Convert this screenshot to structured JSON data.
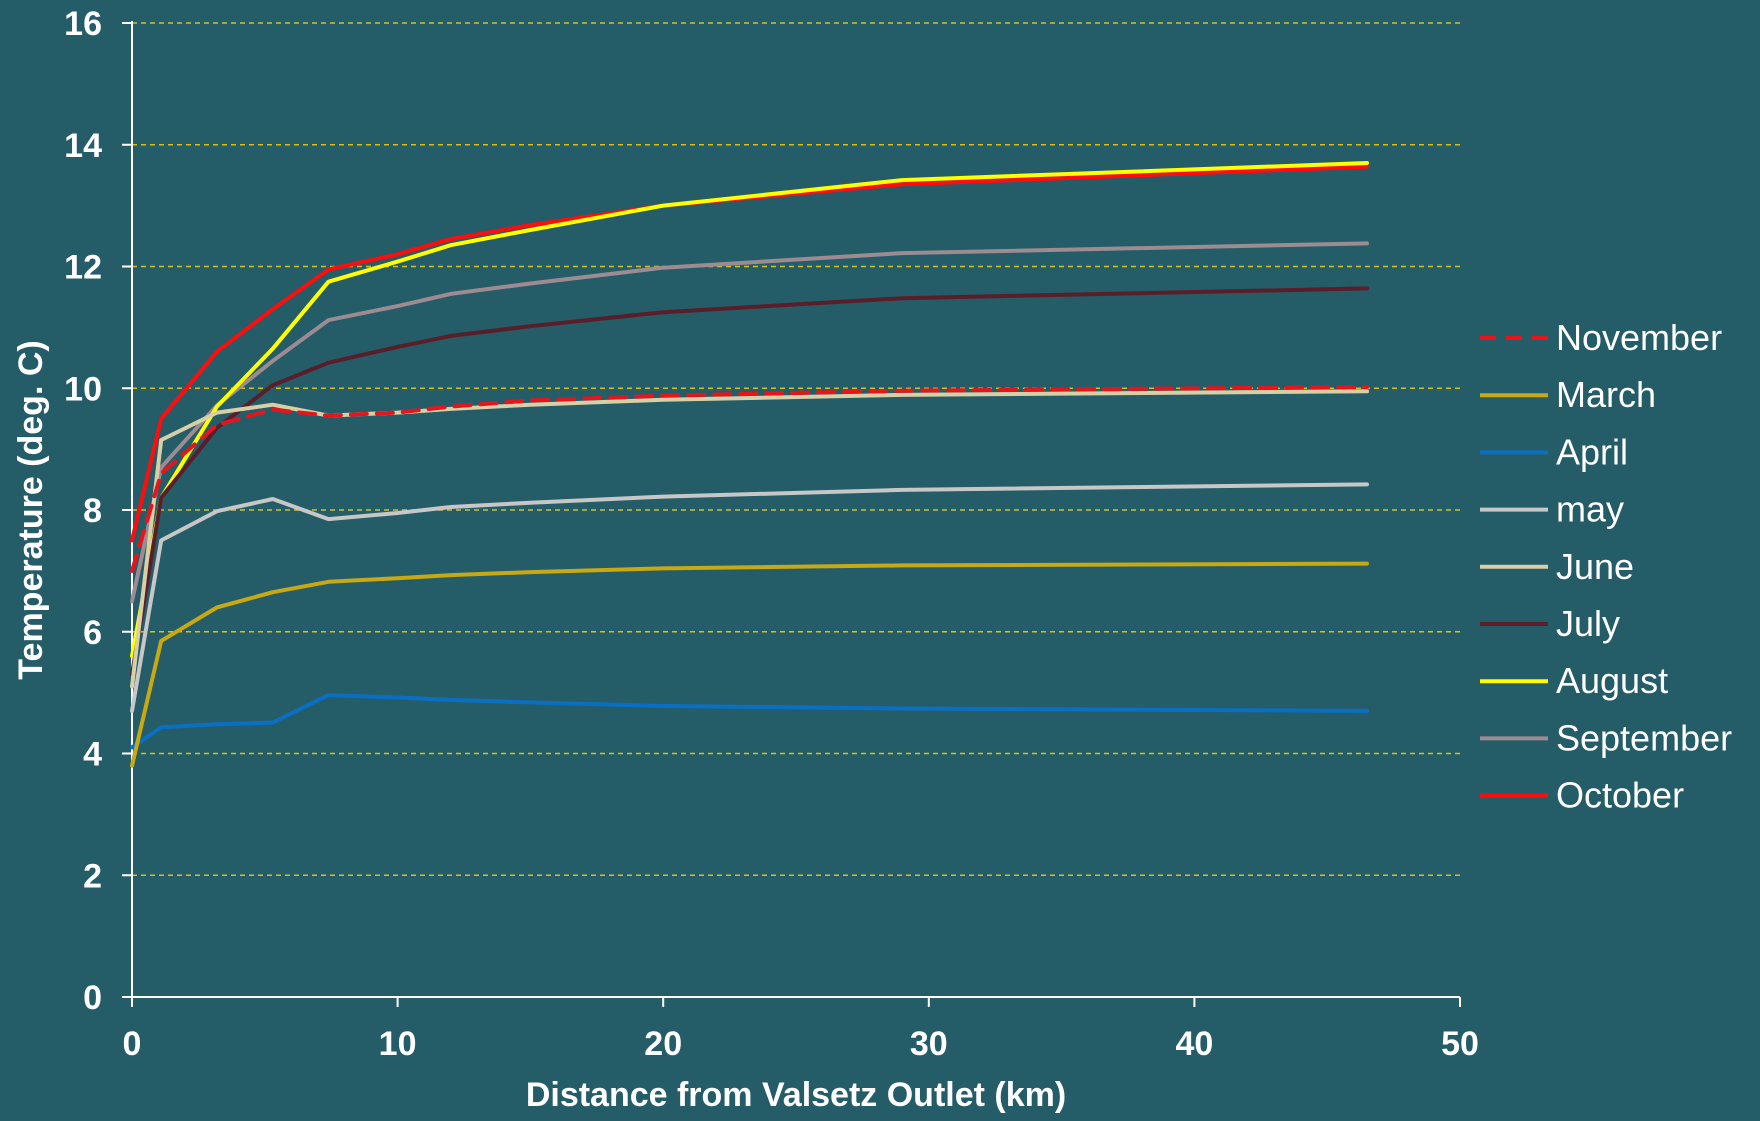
{
  "chart_data": {
    "type": "line",
    "xlabel": "Distance from Valsetz Outlet (km)",
    "ylabel": "Temperature (deg. C)",
    "xlim": [
      0,
      50
    ],
    "ylim": [
      0,
      16
    ],
    "xticks": [
      0,
      10,
      20,
      30,
      40,
      50
    ],
    "yticks": [
      0,
      2,
      4,
      6,
      8,
      10,
      12,
      14,
      16
    ],
    "grid": "horizontal dashed",
    "legend_position": "right",
    "colors": {
      "background": "#245c68",
      "axis": "#ffffff",
      "grid": "#d4c21a",
      "text": "#ffffff"
    },
    "x": [
      0,
      1.1,
      3.2,
      5.3,
      7.4,
      10,
      12,
      15,
      20,
      29,
      46.5
    ],
    "series": [
      {
        "name": "November",
        "color": "#e8141c",
        "style": "dashed",
        "values": [
          7.0,
          8.6,
          9.4,
          9.65,
          9.55,
          9.6,
          9.7,
          9.8,
          9.88,
          9.96,
          10.02
        ]
      },
      {
        "name": "March",
        "color": "#c8a813",
        "style": "solid",
        "values": [
          3.8,
          5.85,
          6.4,
          6.65,
          6.82,
          6.88,
          6.93,
          6.98,
          7.04,
          7.09,
          7.12
        ]
      },
      {
        "name": "April",
        "color": "#0a6fc2",
        "style": "solid",
        "values": [
          4.1,
          4.43,
          4.48,
          4.51,
          4.96,
          4.92,
          4.88,
          4.84,
          4.78,
          4.74,
          4.7
        ]
      },
      {
        "name": "may",
        "color": "#c7c7c7",
        "style": "solid",
        "values": [
          4.7,
          7.5,
          7.98,
          8.18,
          7.85,
          7.95,
          8.05,
          8.12,
          8.22,
          8.33,
          8.42
        ]
      },
      {
        "name": "June",
        "color": "#d9cfa6",
        "style": "solid",
        "values": [
          5.1,
          9.15,
          9.6,
          9.73,
          9.55,
          9.6,
          9.66,
          9.73,
          9.81,
          9.89,
          9.95
        ]
      },
      {
        "name": "July",
        "color": "#5a1e2a",
        "style": "solid",
        "values": [
          5.3,
          8.2,
          9.35,
          10.05,
          10.42,
          10.68,
          10.86,
          11.02,
          11.25,
          11.48,
          11.64
        ]
      },
      {
        "name": "August",
        "color": "#ffff00",
        "style": "solid",
        "values": [
          5.6,
          8.2,
          9.7,
          10.65,
          11.75,
          12.08,
          12.35,
          12.6,
          13.0,
          13.42,
          13.7
        ]
      },
      {
        "name": "September",
        "color": "#9c8b91",
        "style": "solid",
        "values": [
          6.5,
          8.7,
          9.72,
          10.45,
          11.12,
          11.35,
          11.55,
          11.72,
          11.98,
          12.22,
          12.38
        ]
      },
      {
        "name": "October",
        "color": "#ff0d0d",
        "style": "solid",
        "values": [
          7.5,
          9.5,
          10.6,
          11.3,
          11.95,
          12.2,
          12.45,
          12.68,
          13.0,
          13.35,
          13.64
        ]
      }
    ]
  }
}
